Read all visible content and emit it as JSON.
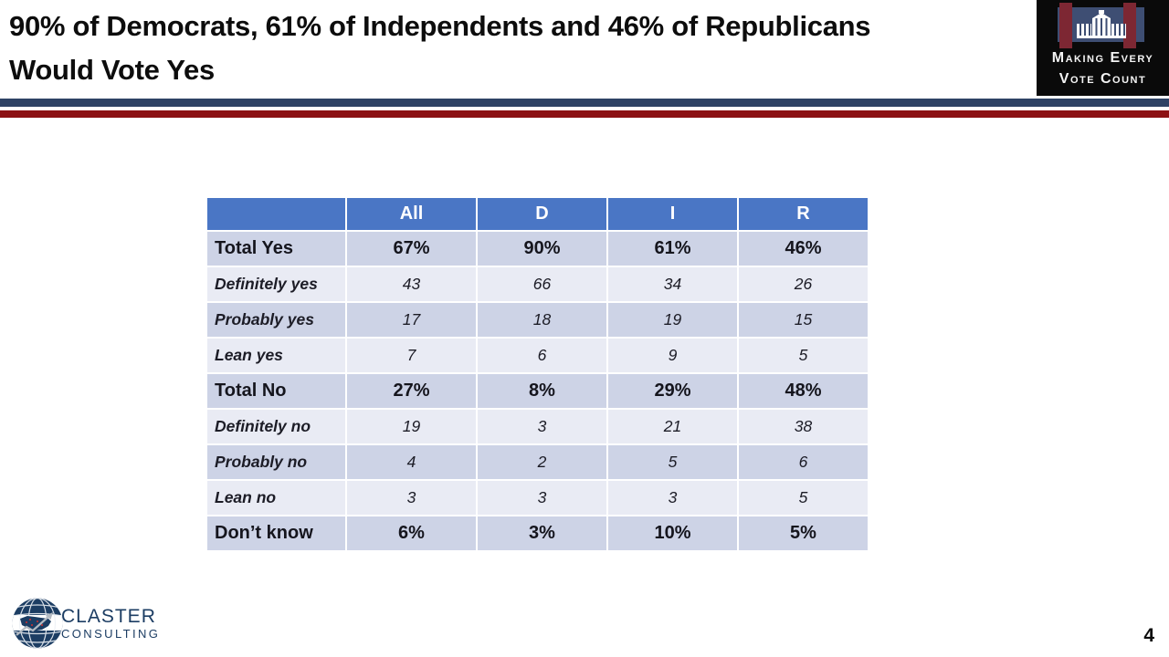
{
  "slide": {
    "title_line1": "90% of Democrats, 61% of Independents and 46% of Republicans",
    "title_line2": "Would Vote Yes",
    "page_number": "4"
  },
  "header_logo": {
    "line1": "Making Every",
    "line2": "Vote Count"
  },
  "footer_logo": {
    "name": "CLASTER",
    "subtitle": "CONSULTING"
  },
  "colors": {
    "header_blue": "#4a76c5",
    "band_dark": "#cdd3e6",
    "band_light": "#e9ebf4",
    "divider_blue": "#2e4265",
    "divider_red": "#8c1113",
    "logo_navy": "#1c3d63"
  },
  "chart_data": {
    "type": "table",
    "title": "90% of Democrats, 61% of Independents and 46% of Republicans Would Vote Yes",
    "columns": [
      "",
      "All",
      "D",
      "I",
      "R"
    ],
    "rows": [
      {
        "label": "Total Yes",
        "values": [
          "67%",
          "90%",
          "61%",
          "46%"
        ],
        "emphasis": "total"
      },
      {
        "label": "Definitely yes",
        "values": [
          "43",
          "66",
          "34",
          "26"
        ],
        "emphasis": "sub"
      },
      {
        "label": "Probably yes",
        "values": [
          "17",
          "18",
          "19",
          "15"
        ],
        "emphasis": "sub"
      },
      {
        "label": "Lean yes",
        "values": [
          "7",
          "6",
          "9",
          "5"
        ],
        "emphasis": "sub"
      },
      {
        "label": "Total No",
        "values": [
          "27%",
          "8%",
          "29%",
          "48%"
        ],
        "emphasis": "total"
      },
      {
        "label": "Definitely no",
        "values": [
          "19",
          "3",
          "21",
          "38"
        ],
        "emphasis": "sub"
      },
      {
        "label": "Probably no",
        "values": [
          "4",
          "2",
          "5",
          "6"
        ],
        "emphasis": "sub"
      },
      {
        "label": "Lean no",
        "values": [
          "3",
          "3",
          "3",
          "5"
        ],
        "emphasis": "sub"
      },
      {
        "label": "Don’t know",
        "values": [
          "6%",
          "3%",
          "10%",
          "5%"
        ],
        "emphasis": "total"
      }
    ]
  }
}
